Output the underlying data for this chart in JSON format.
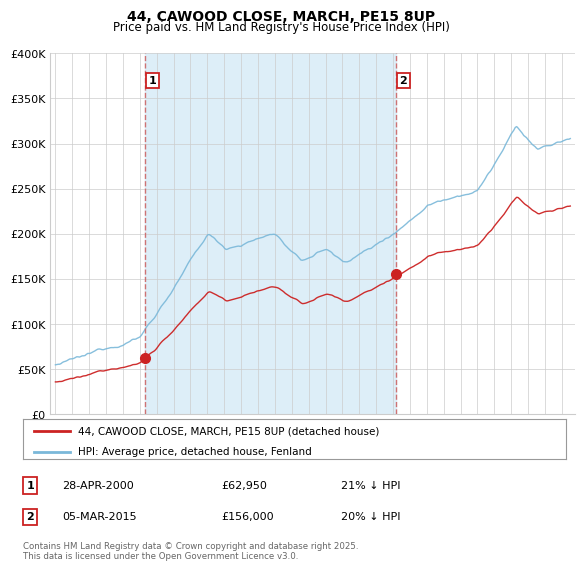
{
  "title": "44, CAWOOD CLOSE, MARCH, PE15 8UP",
  "subtitle": "Price paid vs. HM Land Registry's House Price Index (HPI)",
  "hpi_label": "HPI: Average price, detached house, Fenland",
  "property_label": "44, CAWOOD CLOSE, MARCH, PE15 8UP (detached house)",
  "footnote": "Contains HM Land Registry data © Crown copyright and database right 2025.\nThis data is licensed under the Open Government Licence v3.0.",
  "ylim": [
    0,
    400000
  ],
  "yticks": [
    0,
    50000,
    100000,
    150000,
    200000,
    250000,
    300000,
    350000,
    400000
  ],
  "marker1": {
    "label": "1",
    "year": 2000.32,
    "price": 62950,
    "text": "28-APR-2000",
    "amount": "£62,950",
    "pct": "21% ↓ HPI"
  },
  "marker2": {
    "label": "2",
    "year": 2015.18,
    "price": 156000,
    "text": "05-MAR-2015",
    "amount": "£156,000",
    "pct": "20% ↓ HPI"
  },
  "hpi_color": "#7ab8d9",
  "property_color": "#cc2222",
  "vline_color": "#cc6666",
  "shade_color": "#ddeef8",
  "background_color": "#ffffff",
  "grid_color": "#cccccc",
  "xstart": 1995,
  "xend": 2026
}
